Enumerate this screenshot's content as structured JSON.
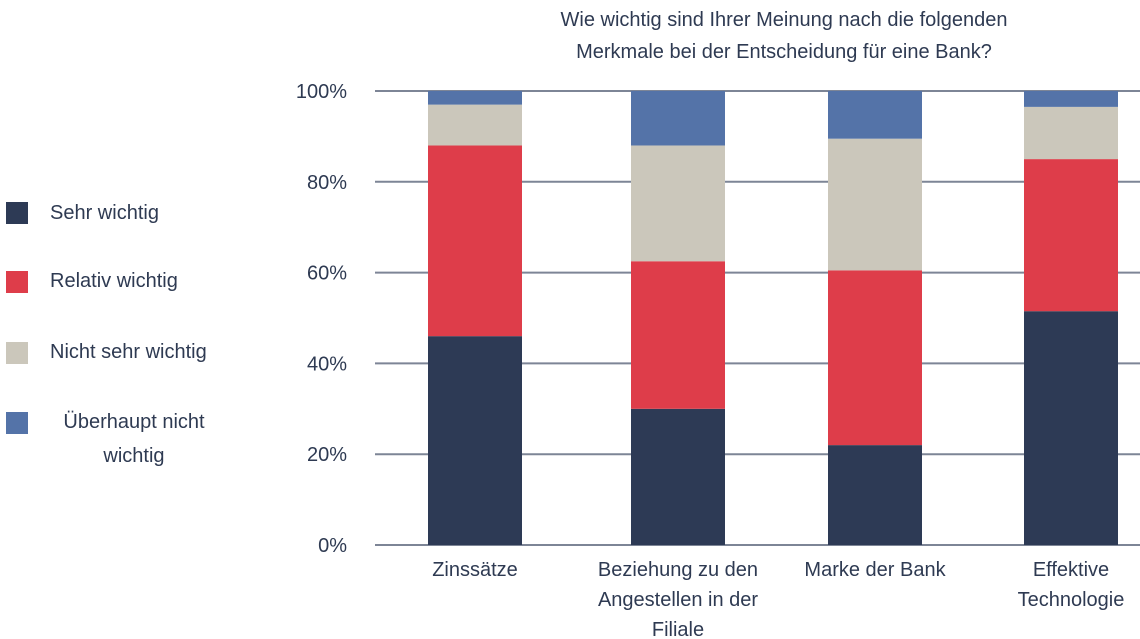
{
  "chart_data": {
    "type": "bar",
    "stacked": true,
    "title": "Wie wichtig sind Ihrer Meinung nach die folgenden Merkmale bei der Entscheidung für eine Bank?",
    "title_lines": [
      "Wie wichtig sind Ihrer Meinung nach die folgenden",
      "Merkmale bei der Entscheidung für eine Bank?"
    ],
    "categories": [
      "Zinssätze",
      "Beziehung zu den Angestellen in der Filiale",
      "Marke der Bank",
      "Effektive Technologie"
    ],
    "category_label_lines": [
      [
        "Zinssätze"
      ],
      [
        "Beziehung zu den",
        "Angestellen in der",
        "Filiale"
      ],
      [
        "Marke der Bank"
      ],
      [
        "Effektive",
        "Technologie"
      ]
    ],
    "series": [
      {
        "name": "Sehr wichtig",
        "color": "#2d3a55",
        "values": [
          46,
          30,
          22,
          51.5
        ]
      },
      {
        "name": "Relativ wichtig",
        "color": "#de3d4a",
        "values": [
          42,
          32.5,
          38.5,
          33.5
        ]
      },
      {
        "name": "Nicht sehr wichtig",
        "color": "#cbc7bb",
        "values": [
          9,
          25.5,
          29,
          11.5
        ]
      },
      {
        "name": "Überhaupt nicht wichtig",
        "color": "#5473a8",
        "values": [
          3,
          12,
          10.5,
          3.5
        ]
      }
    ],
    "legend_lines": [
      [
        "Sehr wichtig"
      ],
      [
        "Relativ wichtig"
      ],
      [
        "Nicht sehr wichtig"
      ],
      [
        "Überhaupt nicht",
        "wichtig"
      ]
    ],
    "ylim": [
      0,
      100
    ],
    "yticks": [
      0,
      20,
      40,
      60,
      80,
      100
    ],
    "ytick_labels": [
      "0%",
      "20%",
      "40%",
      "60%",
      "80%",
      "100%"
    ],
    "grid": true,
    "gridline_color": "#7d8596",
    "legend_position": "left"
  }
}
